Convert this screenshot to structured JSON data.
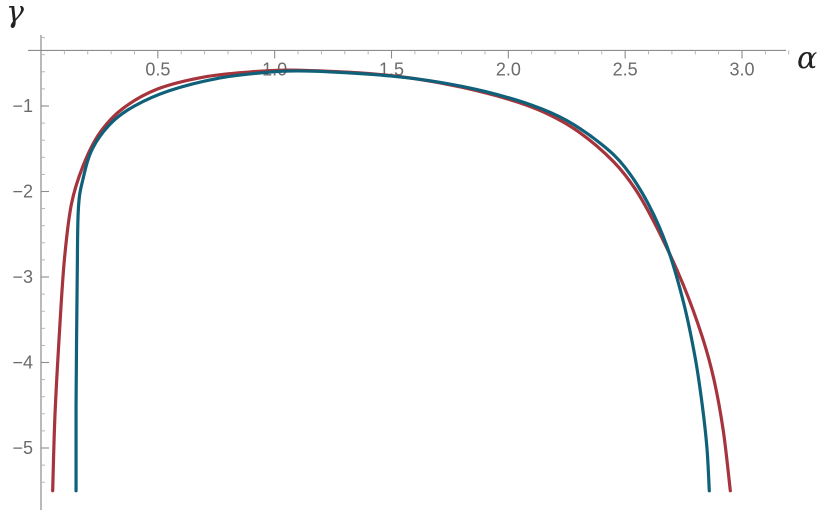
{
  "chart_data": {
    "type": "line",
    "title": "",
    "xlabel": "α",
    "ylabel": "γ",
    "xlim": [
      0,
      3.2
    ],
    "ylim": [
      -5.55,
      -0.35
    ],
    "grid": false,
    "legend": "none",
    "x_ticks": [
      {
        "value": 0.5,
        "label": "0.5"
      },
      {
        "value": 1.0,
        "label": "1.0"
      },
      {
        "value": 1.5,
        "label": "1.5"
      },
      {
        "value": 2.0,
        "label": "2.0"
      },
      {
        "value": 2.5,
        "label": "2.5"
      },
      {
        "value": 3.0,
        "label": "3.0"
      }
    ],
    "y_ticks": [
      {
        "value": -1,
        "label": "−1"
      },
      {
        "value": -2,
        "label": "−2"
      },
      {
        "value": -3,
        "label": "−3"
      },
      {
        "value": -4,
        "label": "−4"
      },
      {
        "value": -5,
        "label": "−5"
      }
    ],
    "series": [
      {
        "color": "#a6343d",
        "points": [
          [
            0.05,
            -5.5
          ],
          [
            0.06,
            -4.6
          ],
          [
            0.08,
            -3.6
          ],
          [
            0.1,
            -2.8
          ],
          [
            0.13,
            -2.15
          ],
          [
            0.18,
            -1.7
          ],
          [
            0.25,
            -1.32
          ],
          [
            0.35,
            -1.03
          ],
          [
            0.5,
            -0.8
          ],
          [
            0.7,
            -0.66
          ],
          [
            0.9,
            -0.6
          ],
          [
            1.05,
            -0.58
          ],
          [
            1.2,
            -0.59
          ],
          [
            1.4,
            -0.62
          ],
          [
            1.6,
            -0.68
          ],
          [
            1.8,
            -0.78
          ],
          [
            2.0,
            -0.92
          ],
          [
            2.15,
            -1.07
          ],
          [
            2.3,
            -1.3
          ],
          [
            2.45,
            -1.65
          ],
          [
            2.55,
            -2.0
          ],
          [
            2.65,
            -2.5
          ],
          [
            2.75,
            -3.1
          ],
          [
            2.83,
            -3.7
          ],
          [
            2.88,
            -4.2
          ],
          [
            2.92,
            -4.8
          ],
          [
            2.95,
            -5.5
          ]
        ]
      },
      {
        "color": "#0f6079",
        "points": [
          [
            0.15,
            -5.5
          ],
          [
            0.15,
            -4.5
          ],
          [
            0.155,
            -3.0
          ],
          [
            0.16,
            -2.2
          ],
          [
            0.18,
            -1.85
          ],
          [
            0.22,
            -1.5
          ],
          [
            0.3,
            -1.2
          ],
          [
            0.4,
            -1.0
          ],
          [
            0.55,
            -0.82
          ],
          [
            0.75,
            -0.68
          ],
          [
            0.95,
            -0.61
          ],
          [
            1.1,
            -0.59
          ],
          [
            1.3,
            -0.61
          ],
          [
            1.5,
            -0.65
          ],
          [
            1.7,
            -0.72
          ],
          [
            1.9,
            -0.83
          ],
          [
            2.1,
            -0.99
          ],
          [
            2.25,
            -1.17
          ],
          [
            2.4,
            -1.45
          ],
          [
            2.5,
            -1.72
          ],
          [
            2.6,
            -2.15
          ],
          [
            2.68,
            -2.65
          ],
          [
            2.75,
            -3.3
          ],
          [
            2.8,
            -3.95
          ],
          [
            2.83,
            -4.5
          ],
          [
            2.85,
            -5.0
          ],
          [
            2.86,
            -5.5
          ]
        ]
      }
    ]
  }
}
